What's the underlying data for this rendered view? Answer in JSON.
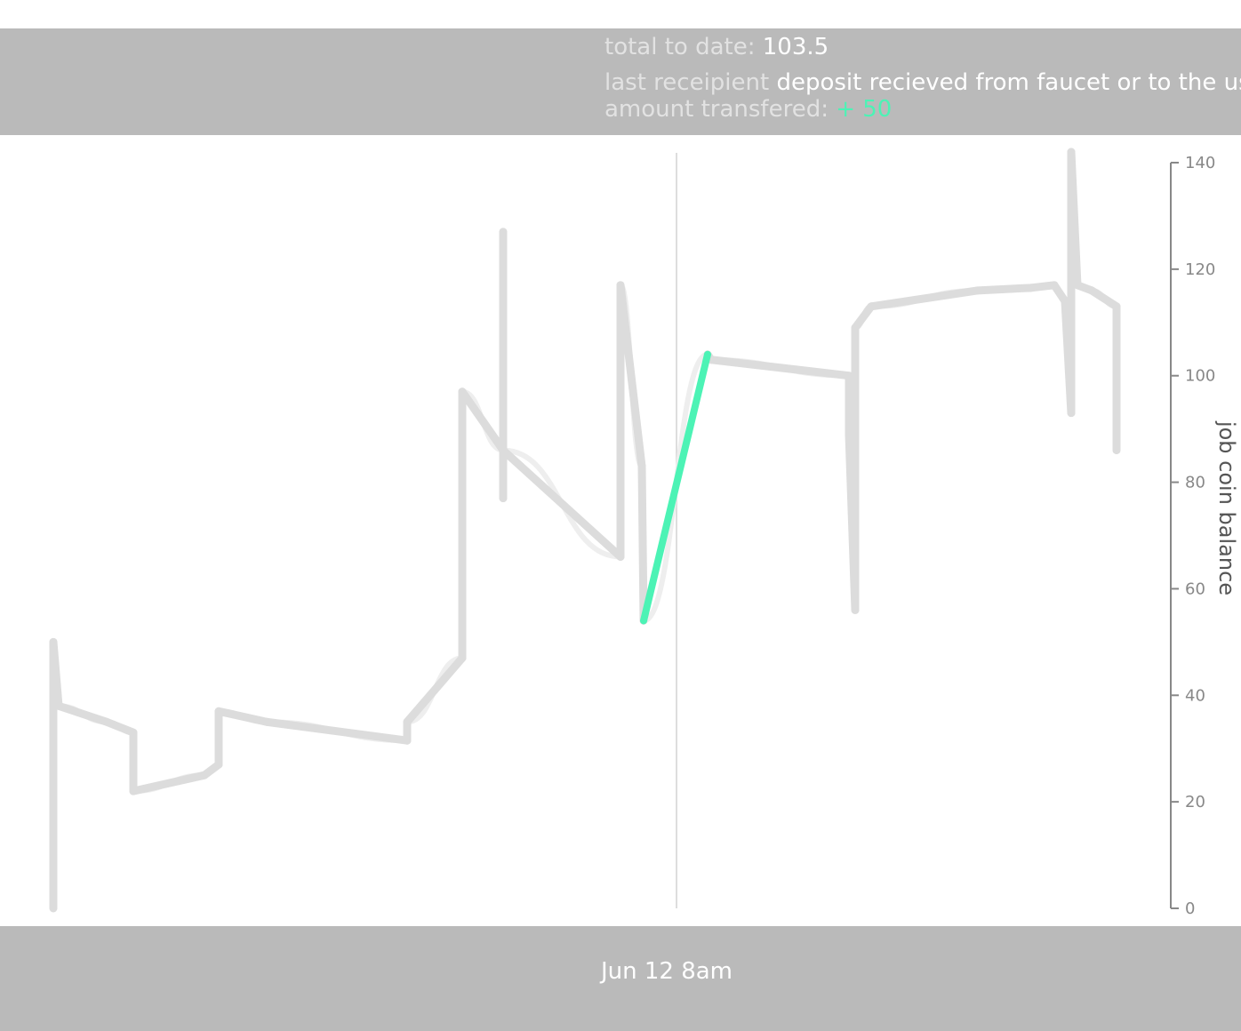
{
  "header": {
    "total_label": "total to date:",
    "total_value": "103.5",
    "recipient_label": "last receipient",
    "recipient_value": "deposit recieved from faucet or to the user th",
    "amount_label": "amount transfered:",
    "amount_value": "+ 50"
  },
  "footer": {
    "date_label": "Jun 12 8am"
  },
  "colors": {
    "header_bg": "#bababa",
    "line": "#dcdcdc",
    "highlight": "#4cf3b5",
    "axis": "#888888"
  },
  "chart_data": {
    "type": "line",
    "ylabel": "job coin balance",
    "ylim": [
      0,
      140
    ],
    "yticks": [
      0,
      20,
      40,
      60,
      80,
      100,
      120,
      140
    ],
    "series": [
      {
        "values": [
          0,
          50,
          38,
          35,
          33,
          22,
          25,
          27,
          37,
          35,
          31.5,
          35,
          47,
          97,
          86,
          77,
          127,
          86,
          66,
          117,
          83,
          54,
          104,
          103,
          100,
          89,
          56,
          109,
          113,
          116,
          116.5,
          117,
          114,
          93,
          142,
          117,
          116,
          113,
          86
        ]
      }
    ],
    "highlight_segment": {
      "from": 54,
      "to": 104,
      "change": 50
    }
  }
}
